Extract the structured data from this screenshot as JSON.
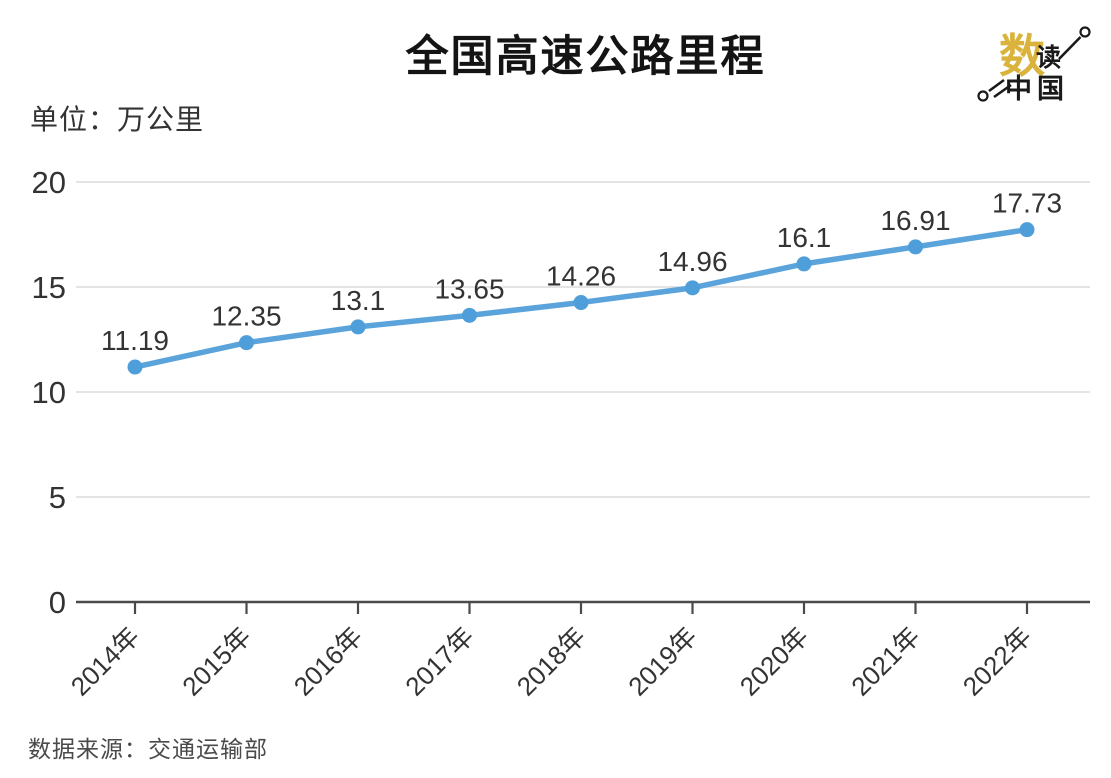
{
  "title": "全国高速公路里程",
  "unit_label": "单位：万公里",
  "source": "数据来源：交通运输部",
  "logo": {
    "word1": "数",
    "word2": "读",
    "word3": "中国"
  },
  "chart_data": {
    "type": "line",
    "categories": [
      "2014年",
      "2015年",
      "2016年",
      "2017年",
      "2018年",
      "2019年",
      "2020年",
      "2021年",
      "2022年"
    ],
    "values": [
      11.19,
      12.35,
      13.1,
      13.65,
      14.26,
      14.96,
      16.1,
      16.91,
      17.73
    ],
    "title": "全国高速公路里程",
    "xlabel": "",
    "ylabel": "万公里",
    "ylim": [
      0,
      20
    ],
    "yticks": [
      0,
      5,
      10,
      15,
      20
    ],
    "grid": true,
    "legend": "none",
    "line_color": "#5BA4DB",
    "marker_color": "#4E9EDA",
    "label_color": "#333333",
    "tick_label_color": "#333333",
    "grid_color": "#DCDCDC",
    "axis_color": "#4A4A4A",
    "logo_gold": "#D9B33C",
    "logo_black": "#1A1A1A"
  }
}
